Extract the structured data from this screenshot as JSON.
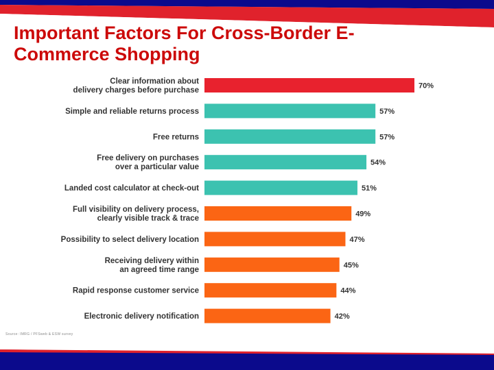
{
  "slide": {
    "title": "Important Factors For Cross-Border E-Commerce Shopping",
    "source": "Source: IMRG / PFSweb & ESW survey"
  },
  "colors": {
    "title": "#cc0a0a",
    "band_blue": "#0b0a8c",
    "band_red": "#e0222c",
    "highlight": "#e8222e",
    "teal": "#3cc2b0",
    "orange": "#fb6514"
  },
  "chart_data": {
    "type": "bar",
    "orientation": "horizontal",
    "categories": [
      [
        "Clear information about",
        "delivery charges before purchase"
      ],
      [
        "Simple and reliable returns process"
      ],
      [
        "Free returns"
      ],
      [
        "Free delivery on purchases",
        "over a particular value"
      ],
      [
        "Landed cost calculator at check-out"
      ],
      [
        "Full visibility on delivery process,",
        "clearly visible track & trace"
      ],
      [
        "Possibility to select delivery location"
      ],
      [
        "Receiving delivery within",
        "an agreed time range"
      ],
      [
        "Rapid response customer service"
      ],
      [
        "Electronic delivery notification"
      ]
    ],
    "values": [
      70,
      57,
      57,
      54,
      51,
      49,
      47,
      45,
      44,
      42
    ],
    "value_labels": [
      "70%",
      "57%",
      "57%",
      "54%",
      "51%",
      "49%",
      "47%",
      "45%",
      "44%",
      "42%"
    ],
    "bar_colors": [
      "#e8222e",
      "#3cc2b0",
      "#3cc2b0",
      "#3cc2b0",
      "#3cc2b0",
      "#fb6514",
      "#fb6514",
      "#fb6514",
      "#fb6514",
      "#fb6514"
    ],
    "unit": "%",
    "xlim": [
      0,
      70
    ],
    "grid": false,
    "legend": "none"
  }
}
